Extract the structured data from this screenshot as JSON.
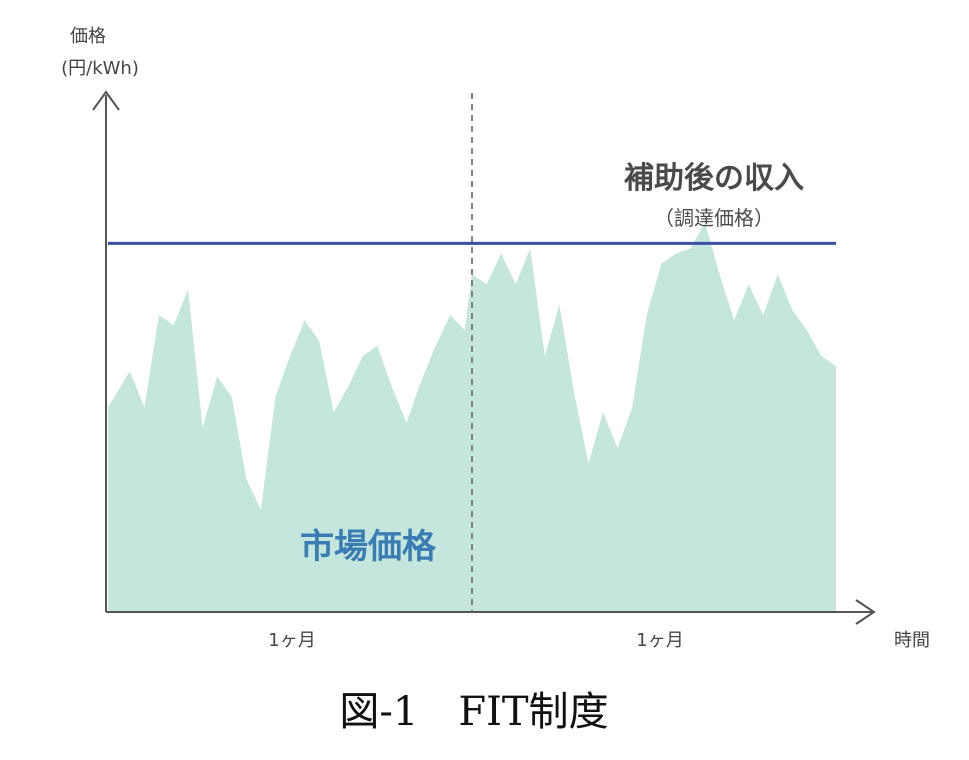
{
  "chart_data": {
    "type": "area",
    "title": "",
    "ylabel_line1": "価格",
    "ylabel_line2": "(円/kWh)",
    "xlabel": "時間",
    "categories": [
      "1ヶ月",
      "1ヶ月"
    ],
    "period_boundary": 50,
    "xlim": [
      0,
      100
    ],
    "ylim": [
      0,
      100
    ],
    "series": [
      {
        "type": "area",
        "color": "#c5e6dc",
        "x": [
          0,
          3,
          5,
          7,
          9,
          11,
          13,
          15,
          17,
          19,
          21,
          23,
          25,
          27,
          29,
          31,
          33,
          35,
          37,
          39,
          41,
          43,
          45,
          47,
          49,
          50,
          52,
          54,
          56,
          58,
          60,
          62,
          64,
          66,
          68,
          70,
          72,
          74,
          76,
          78,
          80,
          82,
          84,
          86,
          88,
          90,
          92,
          94,
          96,
          98,
          100
        ],
        "values": [
          40,
          47,
          40,
          58,
          56,
          63,
          36,
          46,
          42,
          26,
          20,
          42,
          50,
          57,
          53,
          39,
          44,
          50,
          52,
          44,
          37,
          45,
          52,
          58,
          55,
          66,
          64,
          70,
          64,
          71,
          50,
          60,
          43,
          29,
          39,
          32,
          40,
          58,
          68,
          70,
          71,
          76,
          66,
          57,
          64,
          58,
          66,
          59,
          55,
          50,
          48
        ]
      },
      {
        "type": "line",
        "color": "#3a4fa0",
        "values": [
          72,
          72
        ]
      }
    ],
    "annotations": {
      "income_main": "補助後の収入",
      "income_sub": "（調達価格）",
      "market": "市場価格",
      "market_color": "#3a7db3"
    }
  },
  "caption": "図‐1　FIT制度"
}
